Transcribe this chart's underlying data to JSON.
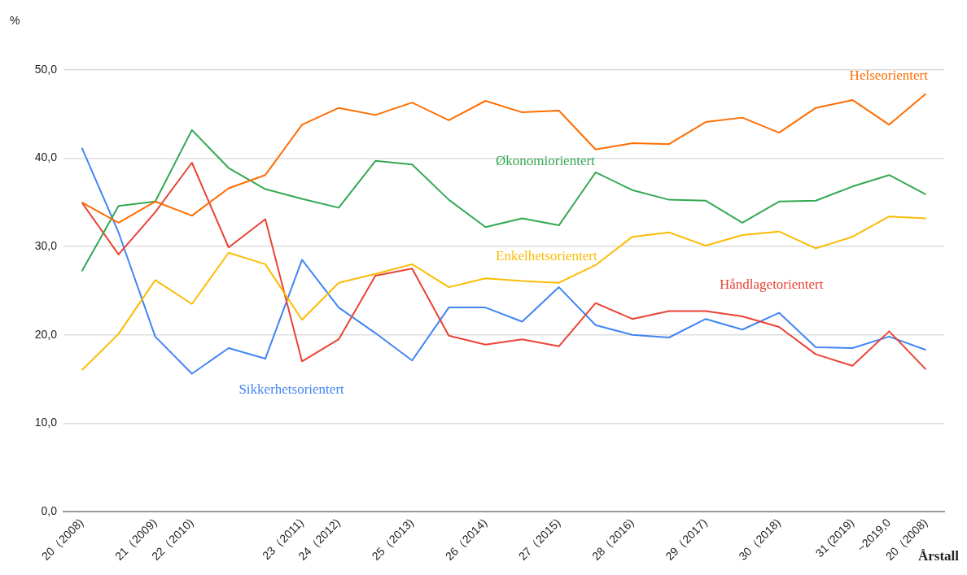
{
  "chart_data": {
    "type": "line",
    "ylabel": "%",
    "xlabel": "Årstall",
    "categories": [
      "20（2008)",
      null,
      "21（2009)",
      "22（2010)",
      null,
      null,
      "23（2011)",
      "24（2012)",
      null,
      "25（2013)",
      null,
      "26（2014)",
      null,
      "27（2015)",
      null,
      "28（2016)",
      null,
      "29（2017)",
      null,
      "30（2018)",
      null,
      "31 (2019)",
      "~2019,0",
      "20（2008)"
    ],
    "series": [
      {
        "name": "Helseorientert",
        "color": "#ff6d01",
        "values": [
          35.0,
          32.7,
          35.1,
          33.5,
          36.6,
          38.1,
          43.8,
          45.7,
          44.9,
          46.3,
          44.3,
          46.5,
          45.2,
          45.4,
          41.0,
          41.7,
          41.6,
          44.1,
          44.6,
          42.9,
          45.7,
          46.6,
          43.8,
          47.3
        ]
      },
      {
        "name": "Økonomiorientert",
        "color": "#34a853",
        "values": [
          27.2,
          34.6,
          35.1,
          43.2,
          38.9,
          36.5,
          35.4,
          34.4,
          39.7,
          39.3,
          35.3,
          32.2,
          33.2,
          32.4,
          38.4,
          36.4,
          35.3,
          35.2,
          32.7,
          35.1,
          35.2,
          36.8,
          38.1,
          35.9
        ]
      },
      {
        "name": "Enkelhetsorientert",
        "color": "#fbbc04",
        "values": [
          16.0,
          20.1,
          26.2,
          23.5,
          29.3,
          28.0,
          21.7,
          25.9,
          26.9,
          28.0,
          25.4,
          26.4,
          26.1,
          25.9,
          27.9,
          31.1,
          31.6,
          30.1,
          31.3,
          31.7,
          29.8,
          31.1,
          33.4,
          33.2
        ]
      },
      {
        "name": "Håndlagetorientert",
        "color": "#ea4335",
        "values": [
          35.0,
          29.1,
          33.9,
          39.5,
          29.9,
          33.1,
          17.0,
          19.5,
          26.7,
          27.5,
          19.9,
          18.9,
          19.5,
          18.7,
          23.6,
          21.8,
          22.7,
          22.7,
          22.1,
          20.9,
          17.8,
          16.5,
          20.4,
          16.1
        ]
      },
      {
        "name": "Sikkerhetsorientert",
        "color": "#4285f4",
        "values": [
          41.2,
          31.6,
          19.8,
          15.6,
          18.5,
          17.3,
          28.5,
          23.1,
          20.2,
          17.1,
          23.1,
          23.1,
          21.5,
          25.4,
          21.1,
          20.0,
          19.7,
          21.8,
          20.6,
          22.5,
          18.6,
          18.5,
          19.8,
          18.3
        ]
      }
    ],
    "ylim": [
      0,
      50
    ],
    "yticks": [
      {
        "value": 0,
        "label": "0,0"
      },
      {
        "value": 10,
        "label": "10,0"
      },
      {
        "value": 20,
        "label": "20,0"
      },
      {
        "value": 30,
        "label": "30,0"
      },
      {
        "value": 40,
        "label": "40,0"
      },
      {
        "value": 50,
        "label": "50,0"
      }
    ],
    "grid": "y",
    "legend": false,
    "marker": "none",
    "line_style": "solid"
  }
}
